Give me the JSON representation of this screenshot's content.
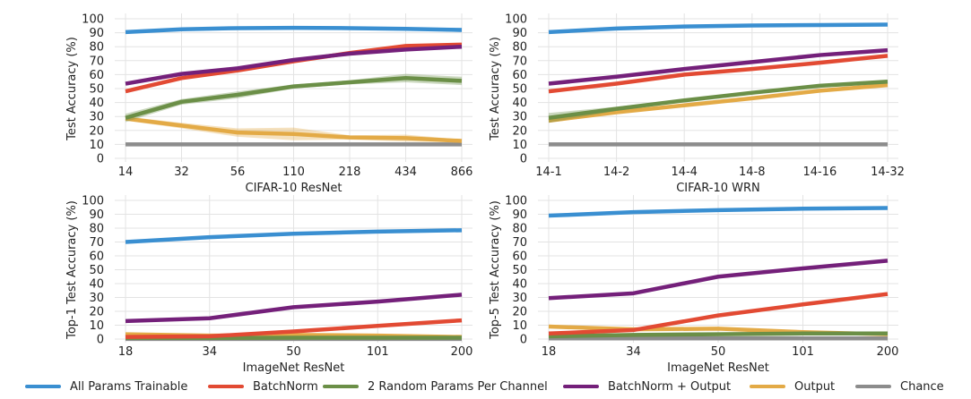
{
  "colors": {
    "All Params Trainable": "#3a8fd1",
    "BatchNorm": "#e24a33",
    "2 Random Params Per Channel": "#6b8f47",
    "BatchNorm + Output": "#74207a",
    "Output": "#e3aa46",
    "Chance": "#8c8c8c"
  },
  "legend": [
    "All Params Trainable",
    "BatchNorm",
    "2 Random Params Per Channel",
    "BatchNorm + Output",
    "Output",
    "Chance"
  ],
  "chart_data": [
    {
      "type": "line",
      "xlabel": "CIFAR-10 ResNet",
      "ylabel": "Test Accuracy (%)",
      "categories": [
        "14",
        "32",
        "56",
        "110",
        "218",
        "434",
        "866"
      ],
      "ylim": [
        0,
        100
      ],
      "yticks": [
        0,
        10,
        20,
        30,
        40,
        50,
        60,
        70,
        80,
        90,
        100
      ],
      "grid": true,
      "series": [
        {
          "name": "All Params Trainable",
          "values": [
            90.5,
            92.5,
            93.3,
            93.5,
            93.3,
            92.8,
            92.0
          ],
          "band": [
            1.0,
            0.5,
            0.5,
            0.5,
            0.5,
            0.8,
            1.5
          ]
        },
        {
          "name": "BatchNorm",
          "values": [
            48.0,
            57.5,
            63.0,
            69.5,
            75.5,
            80.5,
            81.5
          ],
          "band": [
            1.0,
            1.0,
            1.0,
            1.0,
            1.0,
            1.0,
            1.0
          ]
        },
        {
          "name": "BatchNorm + Output",
          "values": [
            53.5,
            60.5,
            64.5,
            70.5,
            75.0,
            78.0,
            80.0
          ],
          "band": [
            1.0,
            1.0,
            1.0,
            1.0,
            1.0,
            1.0,
            1.0
          ]
        },
        {
          "name": "2 Random Params Per Channel",
          "values": [
            29.0,
            40.5,
            45.5,
            51.5,
            54.5,
            57.5,
            55.5
          ],
          "band": [
            3.0,
            2.0,
            2.5,
            1.5,
            1.5,
            3.0,
            3.0
          ]
        },
        {
          "name": "Output",
          "values": [
            28.5,
            23.5,
            18.5,
            17.5,
            15.0,
            14.5,
            12.5
          ],
          "band": [
            1.5,
            2.0,
            3.0,
            4.5,
            1.5,
            2.5,
            1.0
          ]
        },
        {
          "name": "Chance",
          "values": [
            10,
            10,
            10,
            10,
            10,
            10,
            10
          ],
          "band": [
            0,
            0,
            0,
            0,
            0,
            0,
            0
          ]
        }
      ]
    },
    {
      "type": "line",
      "xlabel": "CIFAR-10 WRN",
      "ylabel": "Test Accuracy (%)",
      "categories": [
        "14-1",
        "14-2",
        "14-4",
        "14-8",
        "14-16",
        "14-32"
      ],
      "ylim": [
        0,
        100
      ],
      "yticks": [
        0,
        10,
        20,
        30,
        40,
        50,
        60,
        70,
        80,
        90,
        100
      ],
      "grid": true,
      "series": [
        {
          "name": "All Params Trainable",
          "values": [
            90.5,
            93.0,
            94.5,
            95.2,
            95.5,
            95.8
          ],
          "band": [
            0.5,
            0.5,
            0.5,
            0.5,
            0.5,
            0.5
          ]
        },
        {
          "name": "BatchNorm",
          "values": [
            48.0,
            53.5,
            60.0,
            64.0,
            68.5,
            73.5
          ],
          "band": [
            1.0,
            1.0,
            1.0,
            1.0,
            1.0,
            1.0
          ]
        },
        {
          "name": "BatchNorm + Output",
          "values": [
            53.5,
            58.5,
            64.0,
            69.0,
            74.0,
            77.5
          ],
          "band": [
            1.0,
            1.0,
            1.0,
            1.0,
            1.0,
            1.0
          ]
        },
        {
          "name": "2 Random Params Per Channel",
          "values": [
            29.0,
            35.5,
            41.5,
            47.0,
            52.0,
            55.0
          ],
          "band": [
            3.5,
            1.5,
            1.0,
            1.0,
            1.0,
            1.0
          ]
        },
        {
          "name": "Output",
          "values": [
            27.0,
            33.0,
            38.0,
            43.0,
            48.5,
            52.5
          ],
          "band": [
            1.5,
            1.0,
            1.0,
            1.0,
            1.0,
            1.0
          ]
        },
        {
          "name": "Chance",
          "values": [
            10,
            10,
            10,
            10,
            10,
            10
          ],
          "band": [
            0,
            0,
            0,
            0,
            0,
            0
          ]
        }
      ]
    },
    {
      "type": "line",
      "xlabel": "ImageNet ResNet",
      "ylabel": "Top-1 Test Accuracy (%)",
      "categories": [
        "18",
        "34",
        "50",
        "101",
        "200"
      ],
      "ylim": [
        0,
        100
      ],
      "yticks": [
        0,
        10,
        20,
        30,
        40,
        50,
        60,
        70,
        80,
        90,
        100
      ],
      "grid": true,
      "series": [
        {
          "name": "All Params Trainable",
          "values": [
            70.0,
            73.5,
            76.0,
            77.5,
            78.5
          ],
          "band": [
            0.3,
            0.3,
            0.3,
            0.3,
            0.3
          ]
        },
        {
          "name": "BatchNorm + Output",
          "values": [
            13.0,
            15.0,
            23.0,
            27.0,
            32.0
          ],
          "band": [
            0.3,
            0.3,
            0.3,
            0.3,
            0.3
          ]
        },
        {
          "name": "BatchNorm",
          "values": [
            1.5,
            2.0,
            5.5,
            9.5,
            13.5
          ],
          "band": [
            0.3,
            0.3,
            0.3,
            0.3,
            0.3
          ]
        },
        {
          "name": "Output",
          "values": [
            3.5,
            2.5,
            3.0,
            2.5,
            1.5
          ],
          "band": [
            0.5,
            0.5,
            0.5,
            0.5,
            0.5
          ]
        },
        {
          "name": "2 Random Params Per Channel",
          "values": [
            0.8,
            0.8,
            1.0,
            1.0,
            1.0
          ],
          "band": [
            0.3,
            0.3,
            0.3,
            0.3,
            0.3
          ]
        },
        {
          "name": "Chance",
          "values": [
            0.1,
            0.1,
            0.1,
            0.1,
            0.1
          ],
          "band": [
            0,
            0,
            0,
            0,
            0
          ]
        }
      ]
    },
    {
      "type": "line",
      "xlabel": "ImageNet ResNet",
      "ylabel": "Top-5 Test Accuracy (%)",
      "categories": [
        "18",
        "34",
        "50",
        "101",
        "200"
      ],
      "ylim": [
        0,
        100
      ],
      "yticks": [
        0,
        10,
        20,
        30,
        40,
        50,
        60,
        70,
        80,
        90,
        100
      ],
      "grid": true,
      "series": [
        {
          "name": "All Params Trainable",
          "values": [
            89.0,
            91.5,
            93.0,
            94.0,
            94.5
          ],
          "band": [
            0.3,
            0.3,
            0.3,
            0.3,
            0.3
          ]
        },
        {
          "name": "BatchNorm + Output",
          "values": [
            29.5,
            33.0,
            45.0,
            51.0,
            56.5
          ],
          "band": [
            0.3,
            0.3,
            0.3,
            0.3,
            0.3
          ]
        },
        {
          "name": "BatchNorm",
          "values": [
            4.0,
            6.5,
            17.0,
            25.0,
            32.5
          ],
          "band": [
            0.3,
            0.3,
            0.3,
            0.3,
            0.3
          ]
        },
        {
          "name": "Output",
          "values": [
            9.0,
            7.0,
            7.5,
            5.0,
            3.5
          ],
          "band": [
            0.8,
            0.8,
            0.8,
            0.8,
            0.8
          ]
        },
        {
          "name": "2 Random Params Per Channel",
          "values": [
            2.0,
            3.0,
            3.5,
            4.0,
            4.0
          ],
          "band": [
            0.3,
            0.3,
            0.3,
            0.3,
            0.3
          ]
        },
        {
          "name": "Chance",
          "values": [
            0.5,
            0.5,
            0.5,
            0.5,
            0.5
          ],
          "band": [
            0,
            0,
            0,
            0,
            0
          ]
        }
      ]
    }
  ]
}
